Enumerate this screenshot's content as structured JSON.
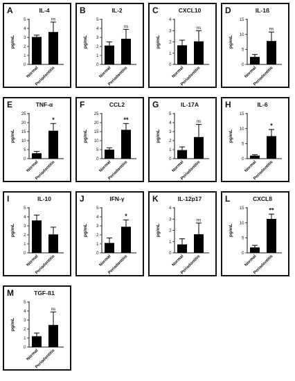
{
  "chart_data": [
    {
      "panel": "A",
      "type": "bar",
      "title": "IL-4",
      "ylabel": "pg/mL",
      "categories": [
        "Normal",
        "Periodontitis"
      ],
      "values": [
        3.05,
        3.6
      ],
      "errors": [
        0.2,
        1.1
      ],
      "ylim": [
        0,
        5
      ],
      "yticks": [
        0,
        1,
        2,
        3,
        4,
        5
      ],
      "significance": "ns"
    },
    {
      "panel": "B",
      "type": "bar",
      "title": "IL-2",
      "ylabel": "pg/mL",
      "categories": [
        "Normal",
        "Periodontitis"
      ],
      "values": [
        2.1,
        2.85
      ],
      "errors": [
        0.4,
        1.05
      ],
      "ylim": [
        0,
        5
      ],
      "yticks": [
        0,
        1,
        2,
        3,
        4,
        5
      ],
      "significance": "ns"
    },
    {
      "panel": "C",
      "type": "bar",
      "title": "CXCL10",
      "ylabel": "pg/mL",
      "categories": [
        "Normal",
        "Periodontitis"
      ],
      "values": [
        1.7,
        2.05
      ],
      "errors": [
        0.45,
        0.95
      ],
      "ylim": [
        0,
        4
      ],
      "yticks": [
        0,
        1,
        2,
        3,
        4
      ],
      "significance": "ns"
    },
    {
      "panel": "D",
      "type": "bar",
      "title": "IL-1ß",
      "ylabel": "pg/mL",
      "categories": [
        "Normal",
        "Periodontitis"
      ],
      "values": [
        2.5,
        7.8
      ],
      "errors": [
        0.8,
        3.0
      ],
      "ylim": [
        0,
        15
      ],
      "yticks": [
        0,
        5,
        10,
        15
      ],
      "significance": "ns"
    },
    {
      "panel": "E",
      "type": "bar",
      "title": "TNF-α",
      "ylabel": "pg/mL",
      "categories": [
        "Normal",
        "Periodontitis"
      ],
      "values": [
        3.0,
        15.5
      ],
      "errors": [
        1.0,
        4.0
      ],
      "ylim": [
        0,
        25
      ],
      "yticks": [
        0,
        5,
        10,
        15,
        20,
        25
      ],
      "significance": "*"
    },
    {
      "panel": "F",
      "type": "bar",
      "title": "CCL2",
      "ylabel": "pg/mL",
      "categories": [
        "Normal",
        "Periodontitis"
      ],
      "values": [
        5.0,
        16.0
      ],
      "errors": [
        1.0,
        3.5
      ],
      "ylim": [
        0,
        25
      ],
      "yticks": [
        0,
        5,
        10,
        15,
        20,
        25
      ],
      "significance": "**"
    },
    {
      "panel": "G",
      "type": "bar",
      "title": "IL-17A",
      "ylabel": "pg/mL",
      "categories": [
        "Normal",
        "Periodontitis"
      ],
      "values": [
        0.95,
        2.4
      ],
      "errors": [
        0.35,
        1.4
      ],
      "ylim": [
        0,
        5
      ],
      "yticks": [
        0,
        1,
        2,
        3,
        4,
        5
      ],
      "significance": "ns"
    },
    {
      "panel": "H",
      "type": "bar",
      "title": "IL-6",
      "ylabel": "pg/mL",
      "categories": [
        "Normal",
        "Periodontitis"
      ],
      "values": [
        1.0,
        7.5
      ],
      "errors": [
        0.3,
        2.2
      ],
      "ylim": [
        0,
        15
      ],
      "yticks": [
        0,
        5,
        10,
        15
      ],
      "significance": "*"
    },
    {
      "panel": "I",
      "type": "bar",
      "title": "IL-10",
      "ylabel": "pg/mL",
      "categories": [
        "Normal",
        "Periodontitis"
      ],
      "values": [
        3.6,
        2.05
      ],
      "errors": [
        0.6,
        0.8
      ],
      "ylim": [
        0,
        5
      ],
      "yticks": [
        0,
        1,
        2,
        3,
        4,
        5
      ],
      "significance": ""
    },
    {
      "panel": "J",
      "type": "bar",
      "title": "IFN-γ",
      "ylabel": "pg/mL",
      "categories": [
        "Normal",
        "Periodontitis"
      ],
      "values": [
        1.1,
        2.9
      ],
      "errors": [
        0.55,
        0.75
      ],
      "ylim": [
        0,
        5
      ],
      "yticks": [
        0,
        1,
        2,
        3,
        4,
        5
      ],
      "significance": "*"
    },
    {
      "panel": "K",
      "type": "bar",
      "title": "IL-12p17",
      "ylabel": "pg/mL",
      "categories": [
        "Normal",
        "Periodontitis"
      ],
      "values": [
        0.75,
        1.65
      ],
      "errors": [
        0.5,
        1.0
      ],
      "ylim": [
        0,
        4
      ],
      "yticks": [
        0,
        1,
        2,
        3,
        4
      ],
      "significance": "ns"
    },
    {
      "panel": "L",
      "type": "bar",
      "title": "CXCL8",
      "ylabel": "pg/mL",
      "categories": [
        "Normal",
        "Periodontitis"
      ],
      "values": [
        1.8,
        11.3
      ],
      "errors": [
        0.7,
        1.6
      ],
      "ylim": [
        0,
        15
      ],
      "yticks": [
        0,
        5,
        10,
        15
      ],
      "significance": "**"
    },
    {
      "panel": "M",
      "type": "bar",
      "title": "TGF-ß1",
      "ylabel": "pg/mL",
      "categories": [
        "Normal",
        "Periodontitis"
      ],
      "values": [
        1.2,
        2.45
      ],
      "errors": [
        0.35,
        1.45
      ],
      "ylim": [
        0,
        5
      ],
      "yticks": [
        0,
        1,
        2,
        3,
        4,
        5
      ],
      "significance": "ns"
    }
  ]
}
